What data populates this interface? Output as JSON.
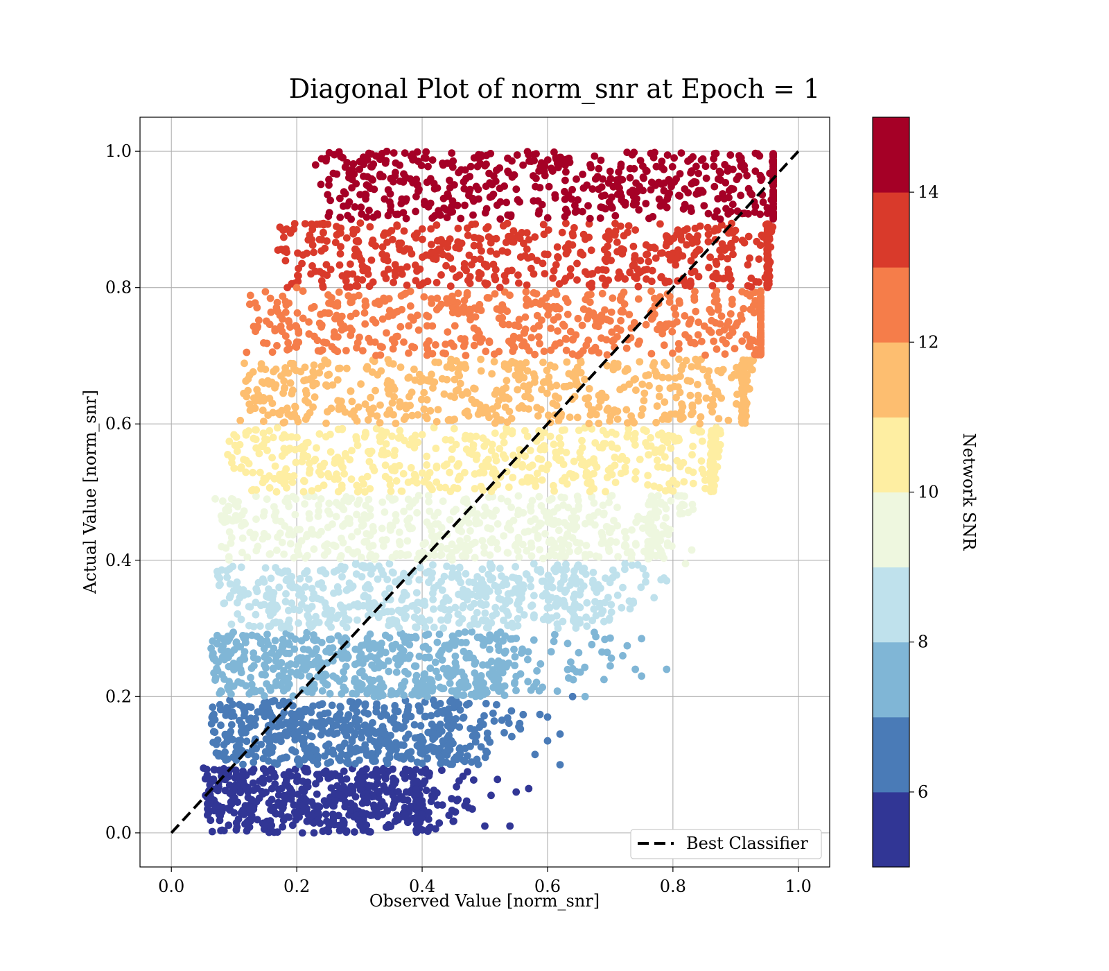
{
  "chart_data": {
    "type": "scatter",
    "title": "Diagonal Plot of norm_snr at Epoch = 1",
    "xlabel": "Observed Value [norm_snr]",
    "ylabel": "Actual Value [norm_snr]",
    "xlim": [
      -0.05,
      1.05
    ],
    "ylim": [
      -0.05,
      1.05
    ],
    "xticks": [
      "0.0",
      "0.2",
      "0.4",
      "0.6",
      "0.8",
      "1.0"
    ],
    "yticks": [
      "0.0",
      "0.2",
      "0.4",
      "0.6",
      "0.8",
      "1.0"
    ],
    "grid": true,
    "legend": {
      "position": "lower-right",
      "entries": [
        {
          "label": "Best Classifier",
          "style": "dashed",
          "color": "#000000"
        }
      ]
    },
    "reference_line": {
      "label": "Best Classifier",
      "x": [
        0.0,
        1.0
      ],
      "y": [
        0.0,
        1.0
      ]
    },
    "colorbar": {
      "label": "Network SNR",
      "range": [
        5,
        15
      ],
      "ticks": [
        "6",
        "8",
        "10",
        "12",
        "14"
      ],
      "tick_values": [
        6,
        8,
        10,
        12,
        14
      ],
      "bins": [
        {
          "from": 5,
          "to": 6,
          "color": "#313695"
        },
        {
          "from": 6,
          "to": 7,
          "color": "#4a7bb7"
        },
        {
          "from": 7,
          "to": 8,
          "color": "#80b6d6"
        },
        {
          "from": 8,
          "to": 9,
          "color": "#bfe1ec"
        },
        {
          "from": 9,
          "to": 10,
          "color": "#eef7df"
        },
        {
          "from": 10,
          "to": 11,
          "color": "#feeea2"
        },
        {
          "from": 11,
          "to": 12,
          "color": "#fdbe70"
        },
        {
          "from": 12,
          "to": 13,
          "color": "#f57d4a"
        },
        {
          "from": 13,
          "to": 14,
          "color": "#d93a2b"
        },
        {
          "from": 14,
          "to": 15,
          "color": "#a50026"
        }
      ]
    },
    "bands": [
      {
        "snr_bin": [
          5,
          6
        ],
        "y_range": [
          0.0,
          0.095
        ],
        "x_min": 0.05,
        "x_core_max": 0.39,
        "x_tail_max": 0.54
      },
      {
        "snr_bin": [
          6,
          7
        ],
        "y_range": [
          0.1,
          0.195
        ],
        "x_min": 0.06,
        "x_core_max": 0.44,
        "x_tail_max": 0.62
      },
      {
        "snr_bin": [
          7,
          8
        ],
        "y_range": [
          0.2,
          0.295
        ],
        "x_min": 0.06,
        "x_core_max": 0.52,
        "x_tail_max": 0.79
      },
      {
        "snr_bin": [
          8,
          9
        ],
        "y_range": [
          0.3,
          0.395
        ],
        "x_min": 0.07,
        "x_core_max": 0.64,
        "x_tail_max": 0.82
      },
      {
        "snr_bin": [
          9,
          10
        ],
        "y_range": [
          0.4,
          0.495
        ],
        "x_min": 0.07,
        "x_core_max": 0.76,
        "x_tail_max": 0.85
      },
      {
        "snr_bin": [
          10,
          11
        ],
        "y_range": [
          0.5,
          0.595
        ],
        "x_min": 0.09,
        "x_core_max": 0.86,
        "x_tail_max": 0.88
      },
      {
        "snr_bin": [
          11,
          12
        ],
        "y_range": [
          0.6,
          0.695
        ],
        "x_min": 0.11,
        "x_core_max": 0.91,
        "x_tail_max": 0.93
      },
      {
        "snr_bin": [
          12,
          13
        ],
        "y_range": [
          0.7,
          0.795
        ],
        "x_min": 0.12,
        "x_core_max": 0.94,
        "x_tail_max": 0.94
      },
      {
        "snr_bin": [
          13,
          14
        ],
        "y_range": [
          0.8,
          0.895
        ],
        "x_min": 0.17,
        "x_core_max": 0.95,
        "x_tail_max": 0.96
      },
      {
        "snr_bin": [
          14,
          15
        ],
        "y_range": [
          0.9,
          1.0
        ],
        "x_min": 0.23,
        "x_core_max": 0.96,
        "x_tail_max": 0.96
      }
    ],
    "outliers": [
      {
        "x": 0.26,
        "y": 0.995,
        "snr": 14.5
      },
      {
        "x": 0.23,
        "y": 0.98,
        "snr": 14.5
      },
      {
        "x": 0.35,
        "y": 0.96,
        "snr": 14.5
      },
      {
        "x": 0.37,
        "y": 0.955,
        "snr": 14.5
      },
      {
        "x": 0.34,
        "y": 0.93,
        "snr": 14.5
      },
      {
        "x": 0.37,
        "y": 0.91,
        "snr": 14.5
      },
      {
        "x": 0.49,
        "y": 0.995,
        "snr": 14.5
      },
      {
        "x": 0.47,
        "y": 0.96,
        "snr": 14.5
      },
      {
        "x": 0.42,
        "y": 0.945,
        "snr": 14.5
      },
      {
        "x": 0.49,
        "y": 0.93,
        "snr": 14.5
      },
      {
        "x": 0.17,
        "y": 0.855,
        "snr": 13.5
      },
      {
        "x": 0.19,
        "y": 0.88,
        "snr": 13.5
      },
      {
        "x": 0.27,
        "y": 0.86,
        "snr": 13.5
      },
      {
        "x": 0.29,
        "y": 0.885,
        "snr": 13.5
      },
      {
        "x": 0.32,
        "y": 0.865,
        "snr": 13.5
      },
      {
        "x": 0.36,
        "y": 0.89,
        "snr": 13.5
      },
      {
        "x": 0.24,
        "y": 0.81,
        "snr": 13.5
      },
      {
        "x": 0.28,
        "y": 0.82,
        "snr": 13.5
      },
      {
        "x": 0.2,
        "y": 0.8,
        "snr": 12.5
      },
      {
        "x": 0.12,
        "y": 0.705,
        "snr": 12.5
      },
      {
        "x": 0.21,
        "y": 0.755,
        "snr": 12.5
      },
      {
        "x": 0.24,
        "y": 0.745,
        "snr": 12.5
      },
      {
        "x": 0.26,
        "y": 0.735,
        "snr": 12.5
      },
      {
        "x": 0.2,
        "y": 0.72,
        "snr": 12.5
      },
      {
        "x": 0.11,
        "y": 0.605,
        "snr": 11.5
      },
      {
        "x": 0.12,
        "y": 0.64,
        "snr": 11.5
      },
      {
        "x": 0.15,
        "y": 0.68,
        "snr": 11.5
      },
      {
        "x": 0.19,
        "y": 0.66,
        "snr": 11.5
      },
      {
        "x": 0.1,
        "y": 0.535,
        "snr": 10.5
      },
      {
        "x": 0.09,
        "y": 0.555,
        "snr": 10.5
      },
      {
        "x": 0.07,
        "y": 0.49,
        "snr": 9.5
      },
      {
        "x": 0.08,
        "y": 0.42,
        "snr": 9.5
      },
      {
        "x": 0.82,
        "y": 0.395,
        "snr": 9.5
      },
      {
        "x": 0.83,
        "y": 0.415,
        "snr": 9.5
      },
      {
        "x": 0.79,
        "y": 0.37,
        "snr": 8.5
      },
      {
        "x": 0.77,
        "y": 0.345,
        "snr": 8.5
      },
      {
        "x": 0.72,
        "y": 0.36,
        "snr": 8.5
      },
      {
        "x": 0.69,
        "y": 0.31,
        "snr": 8.5
      },
      {
        "x": 0.79,
        "y": 0.24,
        "snr": 7.5
      },
      {
        "x": 0.75,
        "y": 0.285,
        "snr": 7.5
      },
      {
        "x": 0.74,
        "y": 0.24,
        "snr": 7.5
      },
      {
        "x": 0.75,
        "y": 0.23,
        "snr": 7.5
      },
      {
        "x": 0.7,
        "y": 0.245,
        "snr": 7.5
      },
      {
        "x": 0.69,
        "y": 0.225,
        "snr": 7.5
      },
      {
        "x": 0.72,
        "y": 0.26,
        "snr": 7.5
      },
      {
        "x": 0.66,
        "y": 0.2,
        "snr": 7.5
      },
      {
        "x": 0.64,
        "y": 0.2,
        "snr": 6.5
      },
      {
        "x": 0.62,
        "y": 0.1,
        "snr": 6.5
      },
      {
        "x": 0.6,
        "y": 0.135,
        "snr": 6.5
      },
      {
        "x": 0.58,
        "y": 0.115,
        "snr": 6.5
      },
      {
        "x": 0.62,
        "y": 0.145,
        "snr": 6.5
      },
      {
        "x": 0.6,
        "y": 0.17,
        "snr": 6.5
      },
      {
        "x": 0.54,
        "y": 0.01,
        "snr": 5.5
      },
      {
        "x": 0.5,
        "y": 0.01,
        "snr": 5.5
      },
      {
        "x": 0.51,
        "y": 0.055,
        "snr": 5.5
      },
      {
        "x": 0.57,
        "y": 0.065,
        "snr": 5.5
      },
      {
        "x": 0.55,
        "y": 0.06,
        "snr": 5.5
      },
      {
        "x": 0.48,
        "y": 0.035,
        "snr": 5.5
      }
    ]
  }
}
